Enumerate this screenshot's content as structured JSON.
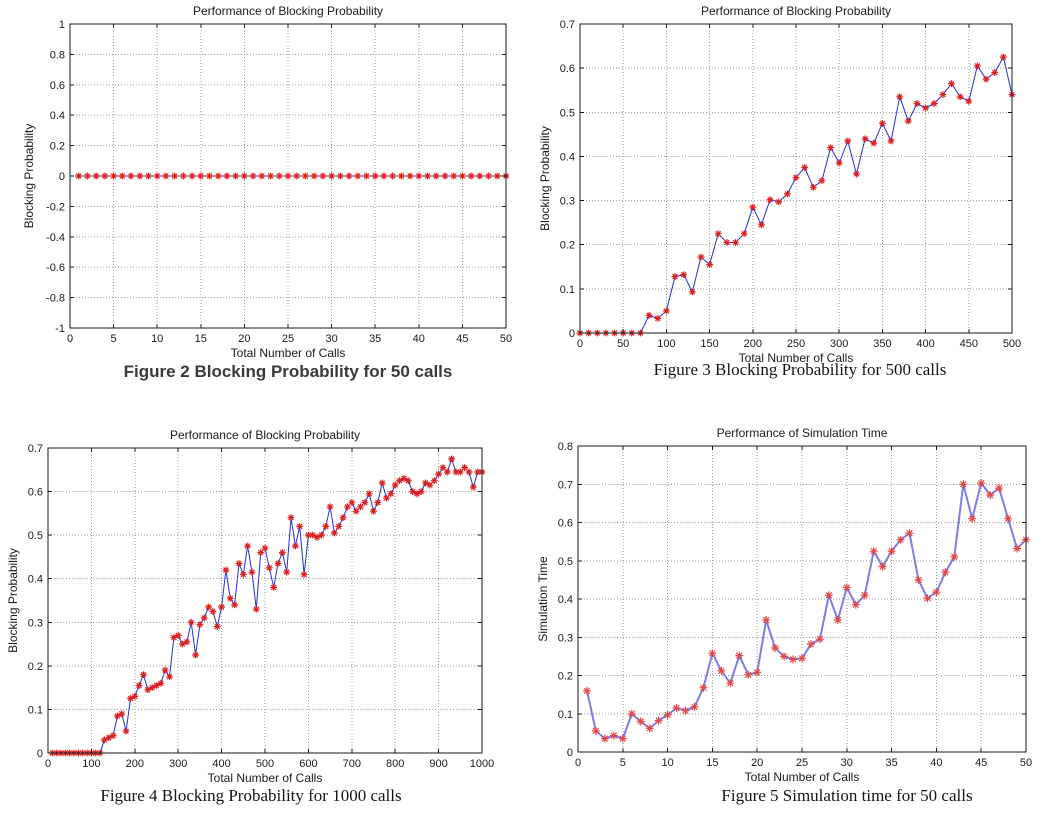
{
  "page": {
    "background": "#ffffff"
  },
  "chart_data": [
    {
      "type": "line",
      "title": "Performance of Blocking Probability",
      "xlabel": "Total Number of Calls",
      "ylabel": "Blocking Probability",
      "caption": "Figure 2 Blocking Probability for 50 calls",
      "xlim": [
        0,
        50
      ],
      "ylim": [
        -1,
        1
      ],
      "xticks": [
        0,
        5,
        10,
        15,
        20,
        25,
        30,
        35,
        40,
        45,
        50
      ],
      "yticks": [
        -1,
        -0.8,
        -0.6,
        -0.4,
        -0.2,
        0,
        0.2,
        0.4,
        0.6,
        0.8,
        1
      ],
      "grid": true,
      "line_color": "#2230d0",
      "line_width": 1,
      "marker": "*",
      "marker_color": "#dc2020",
      "marker_size": 3.4,
      "x": [
        1,
        2,
        3,
        4,
        5,
        6,
        7,
        8,
        9,
        10,
        11,
        12,
        13,
        14,
        15,
        16,
        17,
        18,
        19,
        20,
        21,
        22,
        23,
        24,
        25,
        26,
        27,
        28,
        29,
        30,
        31,
        32,
        33,
        34,
        35,
        36,
        37,
        38,
        39,
        40,
        41,
        42,
        43,
        44,
        45,
        46,
        47,
        48,
        49,
        50
      ],
      "y": [
        0,
        0,
        0,
        0,
        0,
        0,
        0,
        0,
        0,
        0,
        0,
        0,
        0,
        0,
        0,
        0,
        0,
        0,
        0,
        0,
        0,
        0,
        0,
        0,
        0,
        0,
        0,
        0,
        0,
        0,
        0,
        0,
        0,
        0,
        0,
        0,
        0,
        0,
        0,
        0,
        0,
        0,
        0,
        0,
        0,
        0,
        0,
        0,
        0,
        0
      ]
    },
    {
      "type": "line",
      "title": "Performance of Blocking Probability",
      "xlabel": "Total Number of Calls",
      "ylabel": "Blocking Probability",
      "caption": "Figure 3 Blocking Probability for 500 calls",
      "xlim": [
        0,
        500
      ],
      "ylim": [
        0,
        0.7
      ],
      "xticks": [
        0,
        50,
        100,
        150,
        200,
        250,
        300,
        350,
        400,
        450,
        500
      ],
      "yticks": [
        0,
        0.1,
        0.2,
        0.3,
        0.4,
        0.5,
        0.6,
        0.7
      ],
      "grid": true,
      "line_color": "#2230d0",
      "line_width": 1,
      "marker": "*",
      "marker_color": "#dc2020",
      "marker_size": 3.4,
      "x": [
        0,
        10,
        20,
        30,
        40,
        50,
        60,
        70,
        80,
        90,
        100,
        110,
        120,
        130,
        140,
        150,
        160,
        170,
        180,
        190,
        200,
        210,
        220,
        230,
        240,
        250,
        260,
        270,
        280,
        290,
        300,
        310,
        320,
        330,
        340,
        350,
        360,
        370,
        380,
        390,
        400,
        410,
        420,
        430,
        440,
        450,
        460,
        470,
        480,
        490,
        500
      ],
      "y": [
        0,
        0,
        0,
        0,
        0,
        0,
        0,
        0,
        0.04,
        0.033,
        0.05,
        0.128,
        0.132,
        0.093,
        0.172,
        0.155,
        0.225,
        0.205,
        0.205,
        0.225,
        0.285,
        0.245,
        0.302,
        0.297,
        0.315,
        0.352,
        0.375,
        0.33,
        0.345,
        0.42,
        0.385,
        0.435,
        0.36,
        0.44,
        0.43,
        0.475,
        0.435,
        0.535,
        0.48,
        0.52,
        0.51,
        0.52,
        0.54,
        0.565,
        0.535,
        0.525,
        0.605,
        0.575,
        0.59,
        0.625,
        0.54
      ]
    },
    {
      "type": "line",
      "title": "Performance of Blocking Probability",
      "xlabel": "Total Number of Calls",
      "ylabel": "Blocking Probability",
      "caption": "Figure 4 Blocking Probability for 1000 calls",
      "xlim": [
        0,
        1000
      ],
      "ylim": [
        0,
        0.7
      ],
      "xticks": [
        0,
        100,
        200,
        300,
        400,
        500,
        600,
        700,
        800,
        900,
        1000
      ],
      "yticks": [
        0,
        0.1,
        0.2,
        0.3,
        0.4,
        0.5,
        0.6,
        0.7
      ],
      "grid": true,
      "line_color": "#2230d0",
      "line_width": 1,
      "marker": "*",
      "marker_color": "#dc2020",
      "marker_size": 3.4,
      "x": [
        10,
        20,
        30,
        40,
        50,
        60,
        70,
        80,
        90,
        100,
        110,
        120,
        130,
        140,
        150,
        160,
        170,
        180,
        190,
        200,
        210,
        220,
        230,
        240,
        250,
        260,
        270,
        280,
        290,
        300,
        310,
        320,
        330,
        340,
        350,
        360,
        370,
        380,
        390,
        400,
        410,
        420,
        430,
        440,
        450,
        460,
        470,
        480,
        490,
        500,
        510,
        520,
        530,
        540,
        550,
        560,
        570,
        580,
        590,
        600,
        610,
        620,
        630,
        640,
        650,
        660,
        670,
        680,
        690,
        700,
        710,
        720,
        730,
        740,
        750,
        760,
        770,
        780,
        790,
        800,
        810,
        820,
        830,
        840,
        850,
        860,
        870,
        880,
        890,
        900,
        910,
        920,
        930,
        940,
        950,
        960,
        970,
        980,
        990,
        1000
      ],
      "y": [
        0,
        0,
        0,
        0,
        0,
        0,
        0,
        0,
        0,
        0,
        0,
        0,
        0.03,
        0.035,
        0.04,
        0.085,
        0.09,
        0.05,
        0.125,
        0.13,
        0.155,
        0.18,
        0.145,
        0.15,
        0.155,
        0.16,
        0.19,
        0.175,
        0.265,
        0.27,
        0.25,
        0.255,
        0.3,
        0.225,
        0.295,
        0.31,
        0.335,
        0.325,
        0.29,
        0.335,
        0.42,
        0.355,
        0.34,
        0.435,
        0.41,
        0.475,
        0.415,
        0.33,
        0.46,
        0.47,
        0.425,
        0.38,
        0.435,
        0.46,
        0.415,
        0.54,
        0.475,
        0.52,
        0.41,
        0.5,
        0.5,
        0.495,
        0.5,
        0.52,
        0.565,
        0.505,
        0.52,
        0.54,
        0.565,
        0.575,
        0.555,
        0.565,
        0.575,
        0.595,
        0.555,
        0.575,
        0.62,
        0.585,
        0.595,
        0.615,
        0.625,
        0.63,
        0.625,
        0.6,
        0.595,
        0.6,
        0.62,
        0.615,
        0.625,
        0.64,
        0.655,
        0.645,
        0.675,
        0.645,
        0.645,
        0.655,
        0.645,
        0.61,
        0.645,
        0.645
      ]
    },
    {
      "type": "line",
      "title": "Performance of Simulation Time",
      "xlabel": "Total Number of Calls",
      "ylabel": "Simulation Time",
      "caption": "Figure 5 Simulation time for 50 calls",
      "xlim": [
        0,
        50
      ],
      "ylim": [
        0,
        0.8
      ],
      "xticks": [
        0,
        5,
        10,
        15,
        20,
        25,
        30,
        35,
        40,
        45,
        50
      ],
      "yticks": [
        0,
        0.1,
        0.2,
        0.3,
        0.4,
        0.5,
        0.6,
        0.7,
        0.8
      ],
      "grid": true,
      "line_color": "#7d7de8",
      "line_width": 2,
      "marker": "*",
      "marker_color": "#e04848",
      "marker_size": 4,
      "x": [
        1,
        2,
        3,
        4,
        5,
        6,
        7,
        8,
        9,
        10,
        11,
        12,
        13,
        14,
        15,
        16,
        17,
        18,
        19,
        20,
        21,
        22,
        23,
        24,
        25,
        26,
        27,
        28,
        29,
        30,
        31,
        32,
        33,
        34,
        35,
        36,
        37,
        38,
        39,
        40,
        41,
        42,
        43,
        44,
        45,
        46,
        47,
        48,
        49,
        50
      ],
      "y": [
        0.16,
        0.055,
        0.035,
        0.043,
        0.035,
        0.1,
        0.08,
        0.062,
        0.082,
        0.097,
        0.115,
        0.108,
        0.118,
        0.168,
        0.258,
        0.212,
        0.18,
        0.252,
        0.202,
        0.208,
        0.345,
        0.272,
        0.25,
        0.242,
        0.245,
        0.282,
        0.295,
        0.41,
        0.345,
        0.43,
        0.385,
        0.41,
        0.525,
        0.485,
        0.525,
        0.555,
        0.572,
        0.45,
        0.402,
        0.418,
        0.47,
        0.51,
        0.7,
        0.61,
        0.703,
        0.672,
        0.69,
        0.61,
        0.532,
        0.555
      ]
    }
  ]
}
